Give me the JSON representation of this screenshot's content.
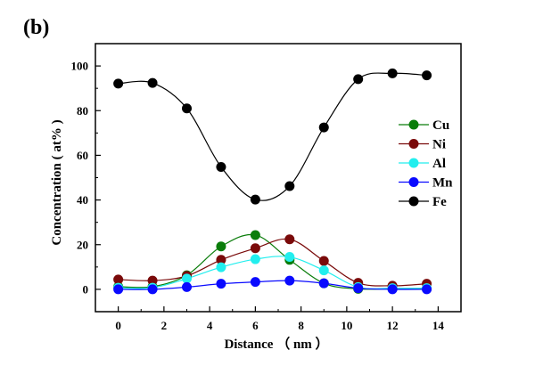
{
  "chart_data": {
    "type": "line",
    "panel_label": "(b)",
    "xlabel": "Distance （ nm ）",
    "ylabel": "Concentration ( at% )",
    "xlim": [
      -1,
      15
    ],
    "ylim": [
      -10,
      110
    ],
    "xticks": [
      0,
      2,
      4,
      6,
      8,
      10,
      12,
      14
    ],
    "yticks": [
      0,
      20,
      40,
      60,
      80,
      100
    ],
    "legend_position": "right",
    "x": [
      0,
      1.5,
      3,
      4.5,
      6,
      7.5,
      9,
      10.5,
      12,
      13.5
    ],
    "series": [
      {
        "name": "Cu",
        "color": "#0a7d0a",
        "values": [
          1.2,
          1.2,
          6.3,
          19.2,
          24.3,
          13.2,
          2.7,
          0.2,
          0.2,
          0.2
        ]
      },
      {
        "name": "Ni",
        "color": "#7a0a0a",
        "values": [
          4.4,
          3.9,
          6.0,
          13.2,
          18.4,
          22.4,
          12.7,
          2.9,
          1.6,
          2.5
        ]
      },
      {
        "name": "Al",
        "color": "#22eeee",
        "values": [
          0.7,
          0.7,
          4.8,
          9.9,
          13.5,
          14.5,
          8.5,
          1.0,
          0.5,
          0.5
        ]
      },
      {
        "name": "Mn",
        "color": "#0a0aff",
        "values": [
          0.0,
          0.0,
          1.0,
          2.5,
          3.3,
          3.9,
          2.7,
          0.5,
          0.0,
          0.0
        ]
      },
      {
        "name": "Fe",
        "color": "#000000",
        "values": [
          92.1,
          92.4,
          81.0,
          54.8,
          40.2,
          46.2,
          72.5,
          94.1,
          96.7,
          95.8
        ]
      }
    ]
  }
}
